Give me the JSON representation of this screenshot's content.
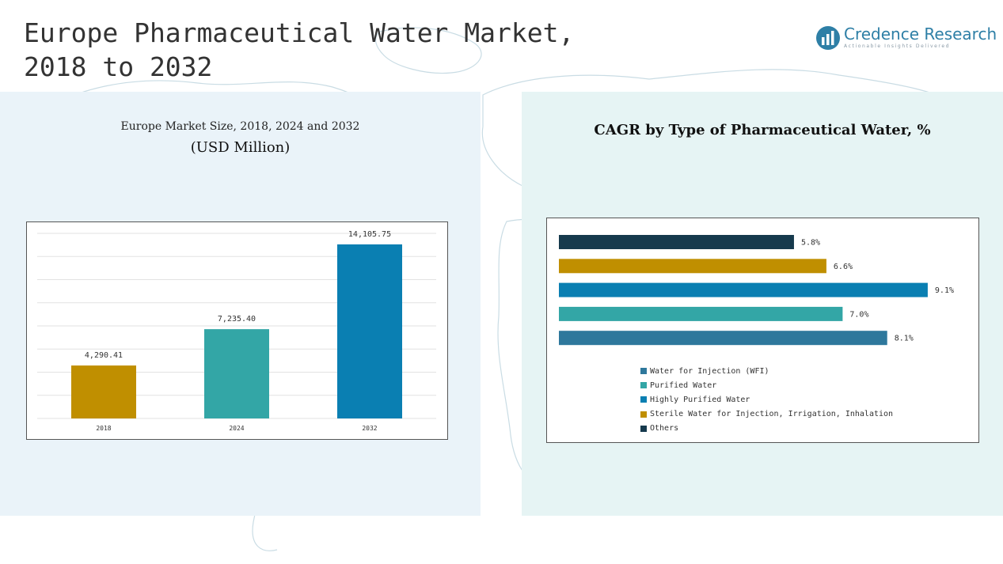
{
  "header": {
    "title_line1": "Europe Pharmaceutical Water Market,",
    "title_line2": "2018 to 2032"
  },
  "logo": {
    "name": "Credence Research",
    "tagline": "Actionable Insights Delivered",
    "color": "#2e7fa6"
  },
  "left_panel": {
    "title": "Europe Market Size, 2018, 2024 and 2032",
    "subtitle": "(USD Million)"
  },
  "right_panel": {
    "title": "CAGR by Type of Pharmaceutical Water, %"
  },
  "chart_data": [
    {
      "type": "bar",
      "categories": [
        "2018",
        "2024",
        "2032"
      ],
      "values": [
        4290.41,
        7235.4,
        14105.75
      ],
      "value_labels": [
        "4,290.41",
        "7,235.40",
        "14,105.75"
      ],
      "colors": [
        "#c08f00",
        "#33a6a6",
        "#0a7fb2"
      ],
      "title": "Europe Market Size, 2018, 2024 and 2032",
      "ylabel": "(USD Million)",
      "ylim": [
        0,
        15000
      ],
      "grid": true,
      "legend": "none"
    },
    {
      "type": "bar",
      "orientation": "horizontal",
      "title": "CAGR by Type of Pharmaceutical Water, %",
      "series": [
        {
          "name": "Others",
          "value": 5.8,
          "label": "5.8%",
          "color": "#163a4d"
        },
        {
          "name": "Sterile Water for Injection, Irrigation, Inhalation",
          "value": 6.6,
          "label": "6.6%",
          "color": "#c08f00"
        },
        {
          "name": "Highly Purified Water",
          "value": 9.1,
          "label": "9.1%",
          "color": "#0a7fb2"
        },
        {
          "name": "Purified Water",
          "value": 7.0,
          "label": "7.0%",
          "color": "#33a6a6"
        },
        {
          "name": "Water for Injection (WFI)",
          "value": 8.1,
          "label": "8.1%",
          "color": "#2e789c"
        }
      ],
      "legend_order": [
        "Water for Injection (WFI)",
        "Purified Water",
        "Highly Purified Water",
        "Sterile Water for Injection, Irrigation, Inhalation",
        "Others"
      ],
      "xlim": [
        0,
        10
      ],
      "grid": false,
      "legend": "bottom"
    }
  ]
}
